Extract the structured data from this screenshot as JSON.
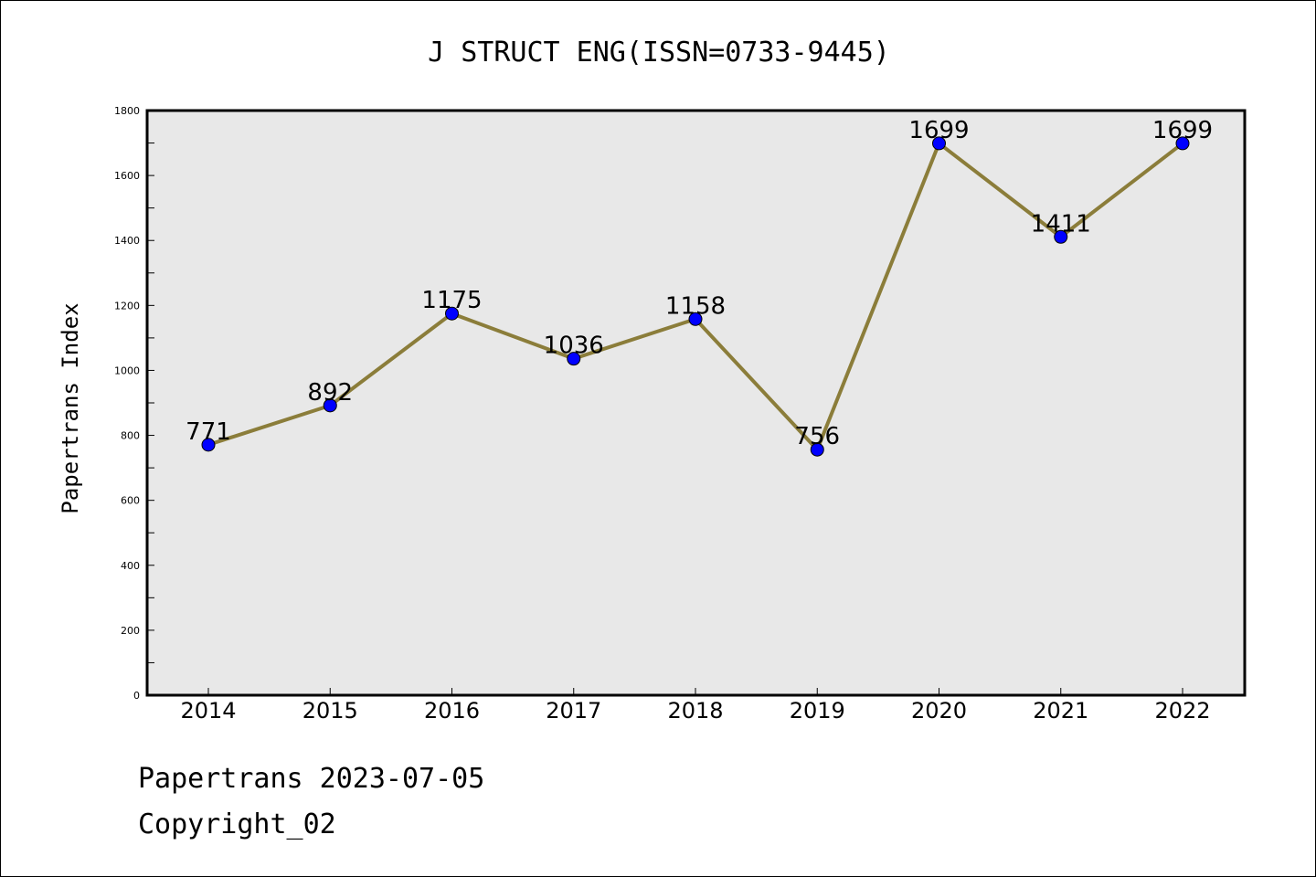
{
  "chart_data": {
    "type": "line",
    "title": "J STRUCT ENG(ISSN=0733-9445)",
    "xlabel": "",
    "ylabel": "Papertrans Index",
    "categories": [
      "2014",
      "2015",
      "2016",
      "2017",
      "2018",
      "2019",
      "2020",
      "2021",
      "2022"
    ],
    "series": [
      {
        "values": [
          771,
          892,
          1175,
          1036,
          1158,
          756,
          1699,
          1411,
          1699
        ]
      }
    ],
    "data_labels": [
      "771",
      "892",
      "1175",
      "1036",
      "1158",
      "756",
      "1699",
      "1411",
      "1699"
    ],
    "ylim": [
      0,
      1800
    ],
    "yticks": [
      0,
      200,
      400,
      600,
      800,
      1000,
      1200,
      1400,
      1600,
      1800
    ],
    "ytick_labels": [
      "0",
      "200",
      "400",
      "600",
      "800",
      "1000",
      "1200",
      "1400",
      "1600",
      "1800"
    ],
    "grid": false,
    "legend": "none",
    "colors": {
      "line": "#8B7D3A",
      "marker": "#0000FF",
      "plot_background": "#E8E8E8"
    }
  },
  "footer": {
    "source": "Papertrans 2023-07-05",
    "copyright": "Copyright_02"
  }
}
